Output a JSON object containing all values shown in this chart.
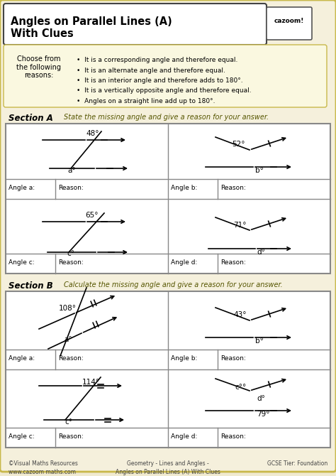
{
  "title_line1": "Angles on Parallel Lines (A)",
  "title_line2": "With Clues",
  "bg_outer": "#f0ead0",
  "bg_content": "#f5f0dc",
  "bg_yellow": "#faf8e0",
  "border_color": "#c8b84a",
  "clues": [
    "It is a corresponding angle and therefore equal.",
    "It is an alternate angle and therefore equal.",
    "It is an interior angle and therefore adds to 180°.",
    "It is a vertically opposite angle and therefore equal.",
    "Angles on a straight line add up to 180°."
  ],
  "choose_text": "Choose from\nthe following\nreasons:",
  "section_a_label": "Section A",
  "section_a_text": "State the missing angle and give a reason for your answer.",
  "section_b_label": "Section B",
  "section_b_text": "Calculate the missing angle and give a reason for your answer.",
  "footer_left": "©Visual Maths Resources\nwww.cazoom maths.com",
  "footer_center": "Geometry - Lines and Angles -\nAngles on Parallel Lines (A) With Clues",
  "footer_right": "GCSE Tier: Foundation",
  "sec_a_angles": [
    "48°",
    "52°",
    "65°",
    "71°"
  ],
  "sec_a_vars": [
    "a°",
    "b°",
    "c°",
    "d°"
  ],
  "sec_b_angles": [
    "108°",
    "43°",
    "114°",
    "79°"
  ],
  "sec_b_vars": [
    "a°",
    "b°",
    "c°",
    "d°"
  ]
}
